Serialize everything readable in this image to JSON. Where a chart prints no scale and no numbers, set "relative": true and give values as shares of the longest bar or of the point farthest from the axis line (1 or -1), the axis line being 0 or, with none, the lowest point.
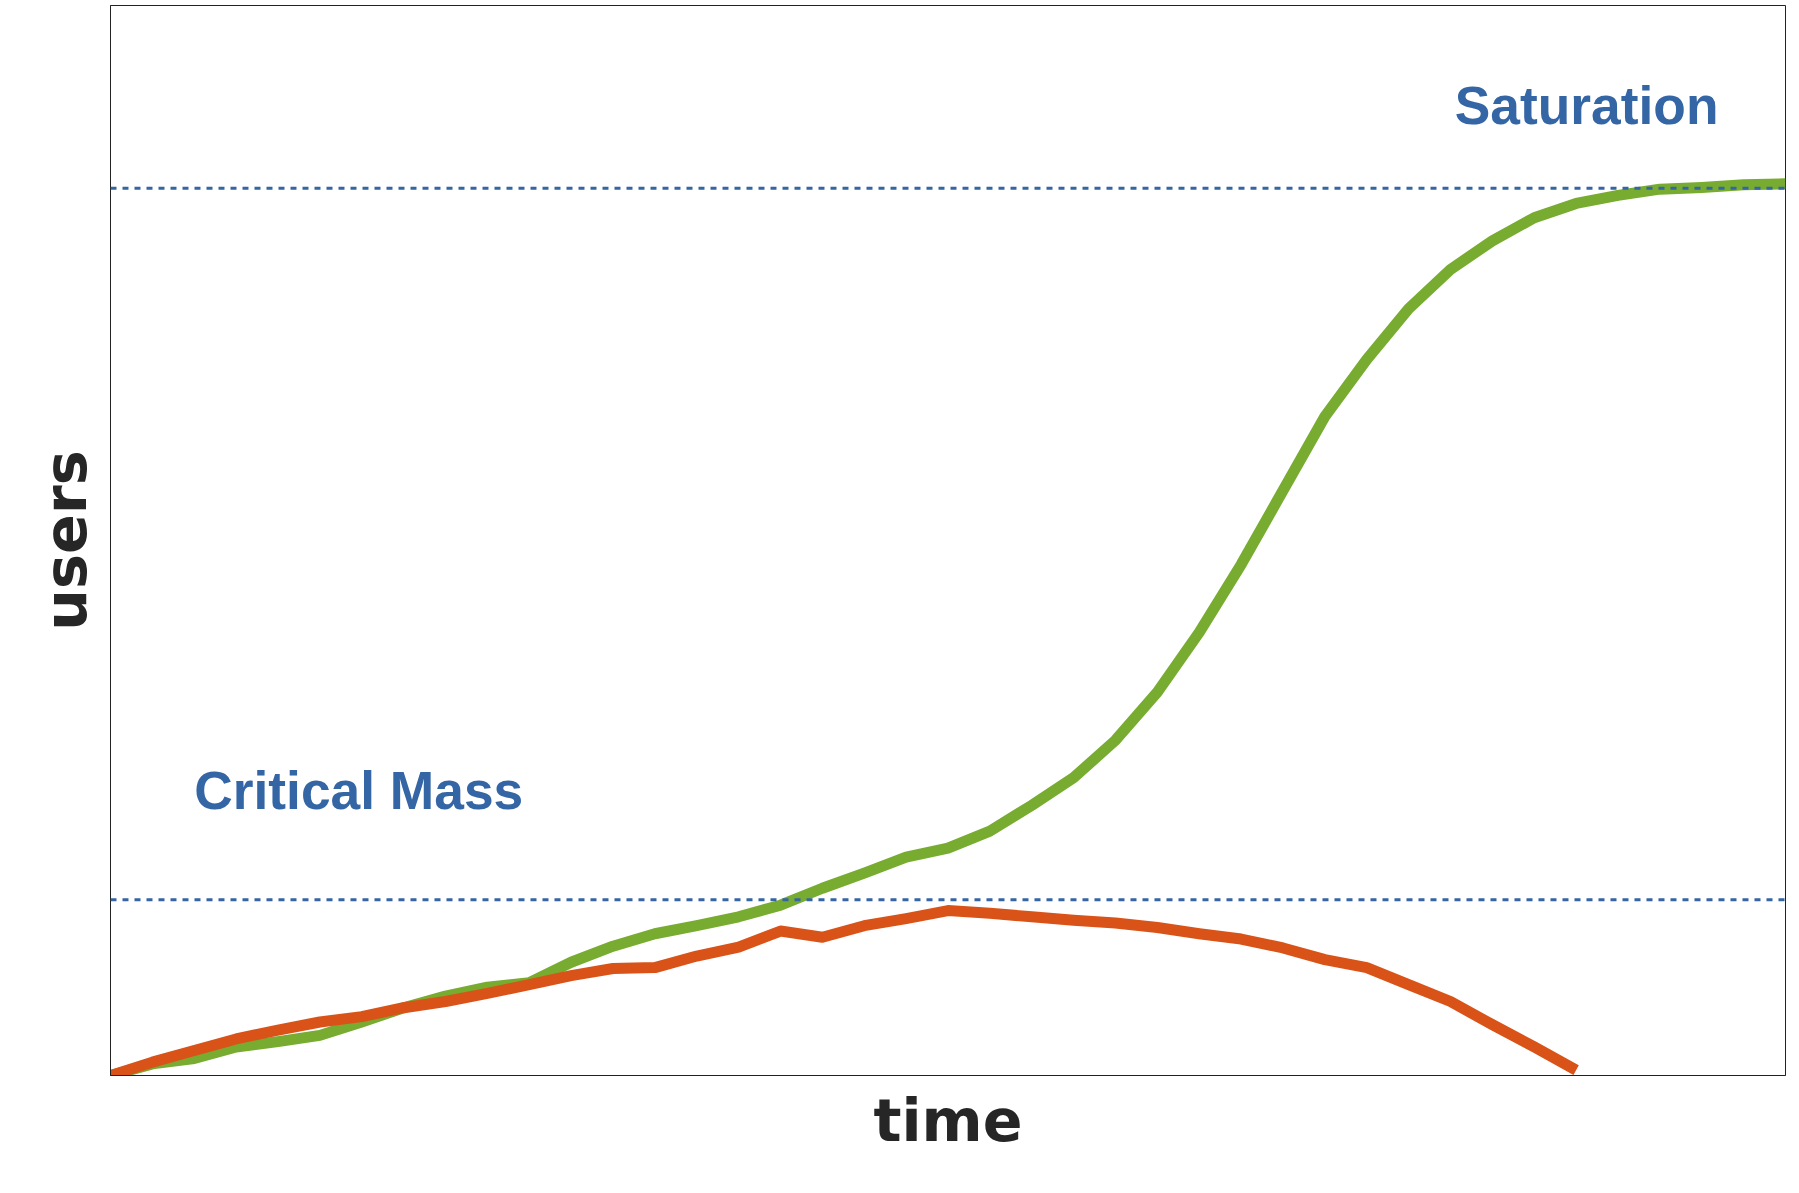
{
  "chart_data": {
    "type": "line",
    "relative": true,
    "xlabel": "time",
    "ylabel": "users",
    "tick_labels": false,
    "categories": [
      null,
      null,
      null,
      null,
      null,
      null,
      null,
      null,
      null,
      null,
      null,
      null,
      null,
      null,
      null,
      null,
      null,
      null,
      null,
      null,
      null,
      null,
      null,
      null,
      null,
      null,
      null,
      null,
      null,
      null,
      null,
      null,
      null,
      null,
      null,
      null,
      null,
      null,
      null,
      null,
      null
    ],
    "series": [
      {
        "color": "#77ac30",
        "values": [
          0,
          0.013,
          0.019,
          0.032,
          0.038,
          0.045,
          0.06,
          0.076,
          0.089,
          0.099,
          0.104,
          0.127,
          0.145,
          0.159,
          0.168,
          0.178,
          0.191,
          0.21,
          0.227,
          0.245,
          0.255,
          0.274,
          0.303,
          0.334,
          0.376,
          0.43,
          0.497,
          0.573,
          0.656,
          0.739,
          0.803,
          0.86,
          0.904,
          0.936,
          0.962,
          0.978,
          0.987,
          0.994,
          0.996,
          0.999,
          1
        ]
      },
      {
        "color": "#d95319",
        "values": [
          0,
          0.015,
          0.028,
          0.041,
          0.051,
          0.06,
          0.066,
          0.076,
          0.083,
          0.092,
          0.102,
          0.112,
          0.12,
          0.121,
          0.134,
          0.144,
          0.162,
          0.155,
          0.168,
          0.176,
          0.185,
          0.182,
          0.178,
          0.174,
          0.171,
          0.166,
          0.159,
          0.153,
          0.143,
          0.13,
          0.121,
          0.102,
          0.083,
          0.057,
          0.032,
          0.006,
          null,
          null,
          null,
          null,
          null
        ]
      }
    ],
    "ref_lines": [
      {
        "axis": "y",
        "value": 0.995,
        "label": "Saturation",
        "color": "#3465a4",
        "line_style": "dashed"
      },
      {
        "axis": "y",
        "value": 0.197,
        "label": "Critical Mass",
        "color": "#3465a4",
        "line_style": "dashed"
      }
    ]
  }
}
